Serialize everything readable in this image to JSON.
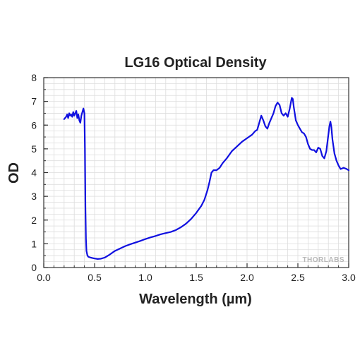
{
  "chart_data": {
    "type": "line",
    "title": "LG16 Optical Density",
    "xlabel": "Wavelength (µm)",
    "ylabel": "OD",
    "xlim": [
      0.0,
      3.0
    ],
    "ylim": [
      0,
      8
    ],
    "x_ticks": [
      "0.0",
      "0.5",
      "1.0",
      "1.5",
      "2.0",
      "2.5",
      "3.0"
    ],
    "y_ticks": [
      "0",
      "1",
      "2",
      "3",
      "4",
      "5",
      "6",
      "7",
      "8"
    ],
    "grid": true,
    "line_color": "#1010e0",
    "series": [
      {
        "x": [
          0.2,
          0.22,
          0.23,
          0.24,
          0.25,
          0.26,
          0.27,
          0.28,
          0.29,
          0.3,
          0.31,
          0.32,
          0.33,
          0.34,
          0.35,
          0.36,
          0.37,
          0.38,
          0.39,
          0.4,
          0.405,
          0.41,
          0.415,
          0.42,
          0.43,
          0.44,
          0.46,
          0.48,
          0.5,
          0.53,
          0.56,
          0.6,
          0.65,
          0.7,
          0.75,
          0.8,
          0.85,
          0.9,
          0.95,
          1.0,
          1.05,
          1.1,
          1.15,
          1.2,
          1.25,
          1.3,
          1.35,
          1.4,
          1.45,
          1.5,
          1.55,
          1.58,
          1.61,
          1.63,
          1.65,
          1.67,
          1.7,
          1.73,
          1.76,
          1.8,
          1.85,
          1.9,
          1.95,
          2.0,
          2.05,
          2.08,
          2.1,
          2.12,
          2.14,
          2.16,
          2.18,
          2.2,
          2.22,
          2.24,
          2.26,
          2.28,
          2.3,
          2.32,
          2.34,
          2.36,
          2.38,
          2.4,
          2.42,
          2.44,
          2.45,
          2.46,
          2.48,
          2.5,
          2.52,
          2.54,
          2.56,
          2.58,
          2.6,
          2.62,
          2.64,
          2.66,
          2.68,
          2.7,
          2.72,
          2.74,
          2.76,
          2.78,
          2.8,
          2.81,
          2.82,
          2.83,
          2.84,
          2.86,
          2.88,
          2.9,
          2.92,
          2.95,
          2.98,
          3.0
        ],
        "y": [
          6.25,
          6.35,
          6.45,
          6.3,
          6.5,
          6.4,
          6.45,
          6.35,
          6.55,
          6.4,
          6.5,
          6.6,
          6.3,
          6.45,
          6.2,
          6.1,
          6.4,
          6.55,
          6.7,
          6.5,
          5.0,
          2.5,
          1.2,
          0.7,
          0.5,
          0.45,
          0.42,
          0.4,
          0.38,
          0.36,
          0.37,
          0.42,
          0.55,
          0.7,
          0.8,
          0.9,
          0.98,
          1.05,
          1.12,
          1.2,
          1.27,
          1.33,
          1.4,
          1.45,
          1.5,
          1.58,
          1.7,
          1.85,
          2.05,
          2.3,
          2.6,
          2.85,
          3.25,
          3.6,
          4.0,
          4.1,
          4.1,
          4.2,
          4.4,
          4.6,
          4.9,
          5.1,
          5.3,
          5.45,
          5.6,
          5.75,
          5.8,
          6.1,
          6.4,
          6.2,
          5.95,
          5.85,
          6.1,
          6.3,
          6.5,
          6.8,
          6.95,
          6.85,
          6.5,
          6.4,
          6.5,
          6.35,
          6.7,
          7.15,
          7.1,
          6.75,
          6.2,
          6.0,
          5.85,
          5.7,
          5.65,
          5.5,
          5.2,
          5.0,
          4.95,
          4.95,
          4.85,
          5.05,
          5.0,
          4.7,
          4.6,
          4.9,
          5.6,
          5.95,
          6.15,
          5.9,
          5.4,
          4.8,
          4.5,
          4.3,
          4.15,
          4.2,
          4.15,
          4.1
        ]
      }
    ],
    "watermark": "THORLABS"
  }
}
